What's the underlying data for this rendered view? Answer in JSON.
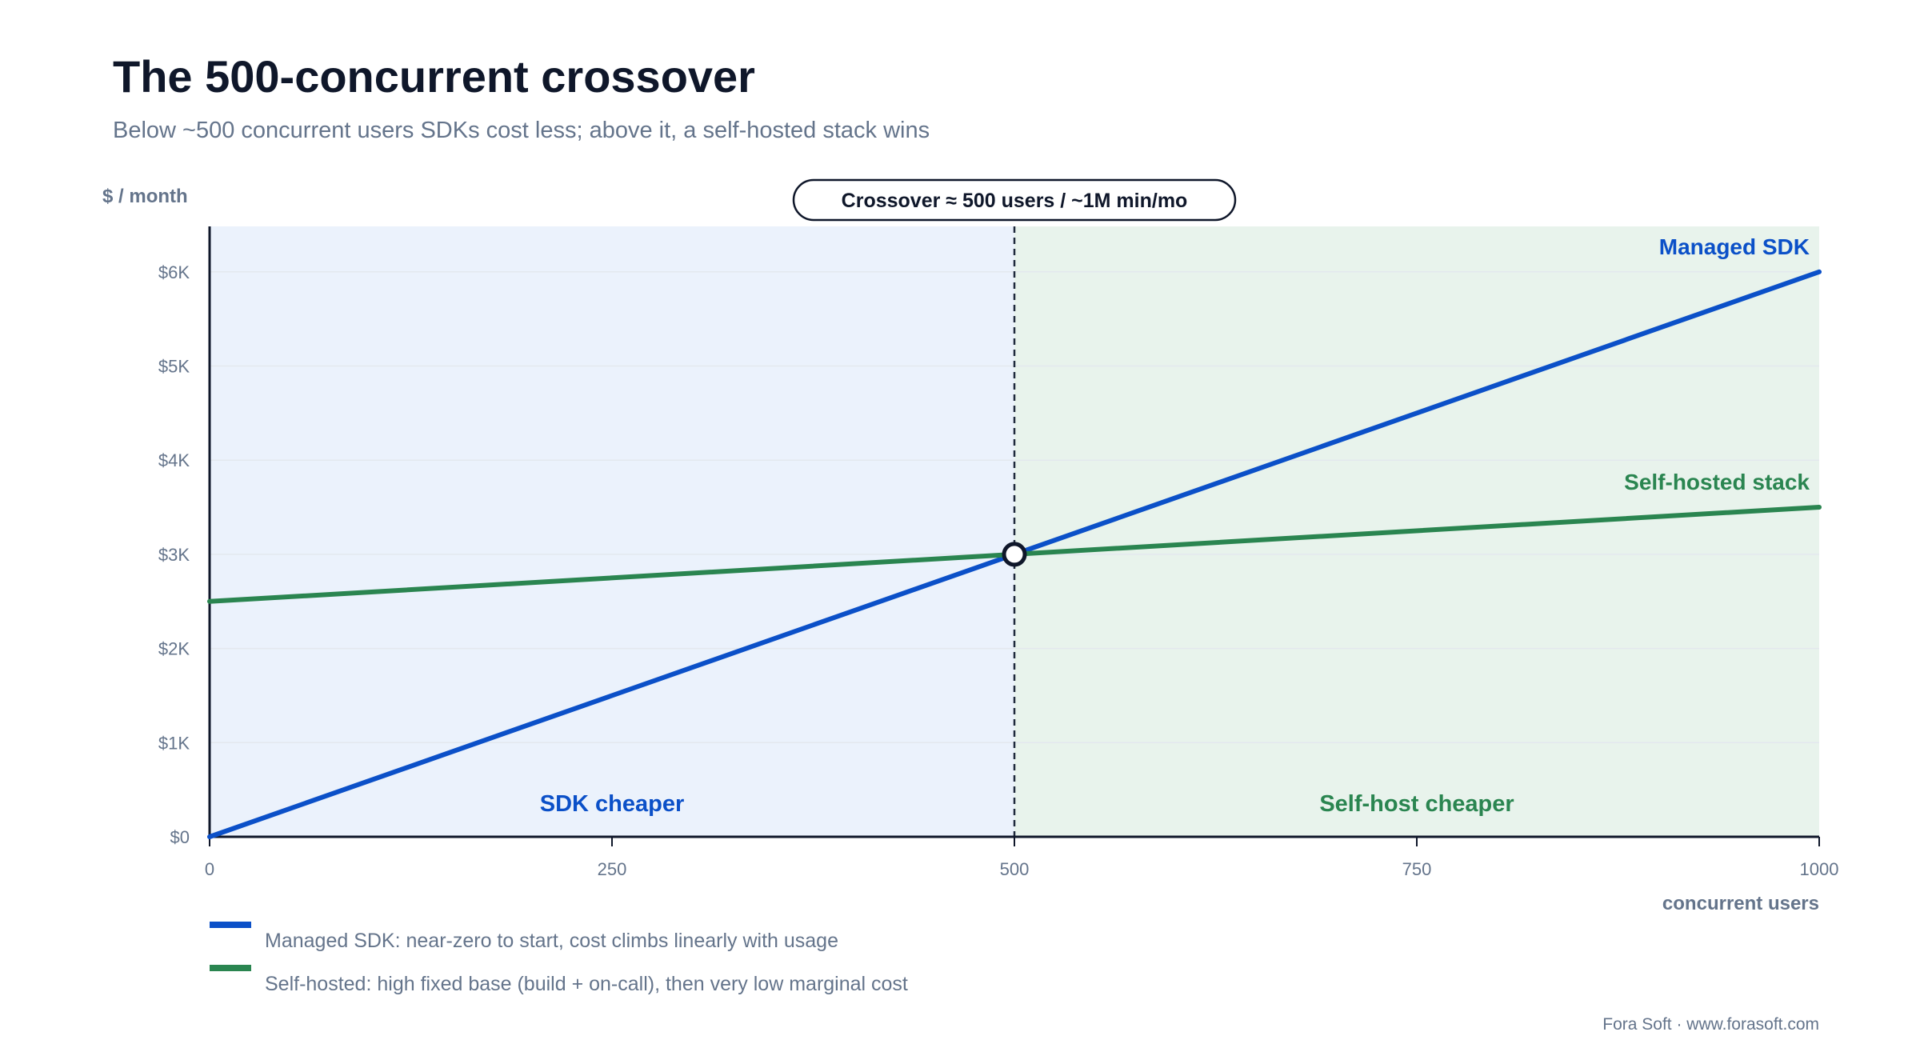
{
  "chart_data": {
    "type": "line",
    "title": "The 500-concurrent crossover",
    "subtitle": "Below ~500 concurrent users SDKs cost less; above it, a self-hosted stack wins",
    "ylabel": "$ / month",
    "xlabel": "concurrent users",
    "xlim": [
      0,
      1000
    ],
    "ylim": [
      0,
      6500
    ],
    "x_ticks": [
      {
        "value": 0,
        "label": "0"
      },
      {
        "value": 250,
        "label": "250"
      },
      {
        "value": 500,
        "label": "500"
      },
      {
        "value": 750,
        "label": "750"
      },
      {
        "value": 1000,
        "label": "1000"
      }
    ],
    "y_ticks": [
      {
        "value": 0,
        "label": "$0"
      },
      {
        "value": 1000,
        "label": "$1K"
      },
      {
        "value": 2000,
        "label": "$2K"
      },
      {
        "value": 3000,
        "label": "$3K"
      },
      {
        "value": 4000,
        "label": "$4K"
      },
      {
        "value": 5000,
        "label": "$5K"
      },
      {
        "value": 6000,
        "label": "$6K"
      }
    ],
    "grid": true,
    "series": [
      {
        "name": "Managed SDK",
        "color": "#0b50c8",
        "x": [
          0,
          500,
          1000
        ],
        "y": [
          0,
          3000,
          6000
        ]
      },
      {
        "name": "Self-hosted stack",
        "color": "#2a8550",
        "x": [
          0,
          500,
          1000
        ],
        "y": [
          2500,
          3000,
          3500
        ]
      }
    ],
    "crossover": {
      "x": 500,
      "y": 3000,
      "label": "Crossover ≈ 500 users / ~1M min/mo"
    },
    "regions": [
      {
        "label": "SDK cheaper",
        "x_from": 0,
        "x_to": 500,
        "fill": "#ebf2fc",
        "text_color": "#0b50c8"
      },
      {
        "label": "Self-host cheaper",
        "x_from": 500,
        "x_to": 1000,
        "fill": "#e8f3ec",
        "text_color": "#2a8550"
      }
    ],
    "legend": [
      {
        "text": "Managed SDK: near-zero to start, cost climbs linearly with usage",
        "color": "#0b50c8"
      },
      {
        "text": "Self-hosted: high fixed base (build + on-call), then very low marginal cost",
        "color": "#2a8550"
      }
    ],
    "legend_position": "bottom-left",
    "credit": "Fora Soft · www.forasoft.com"
  }
}
